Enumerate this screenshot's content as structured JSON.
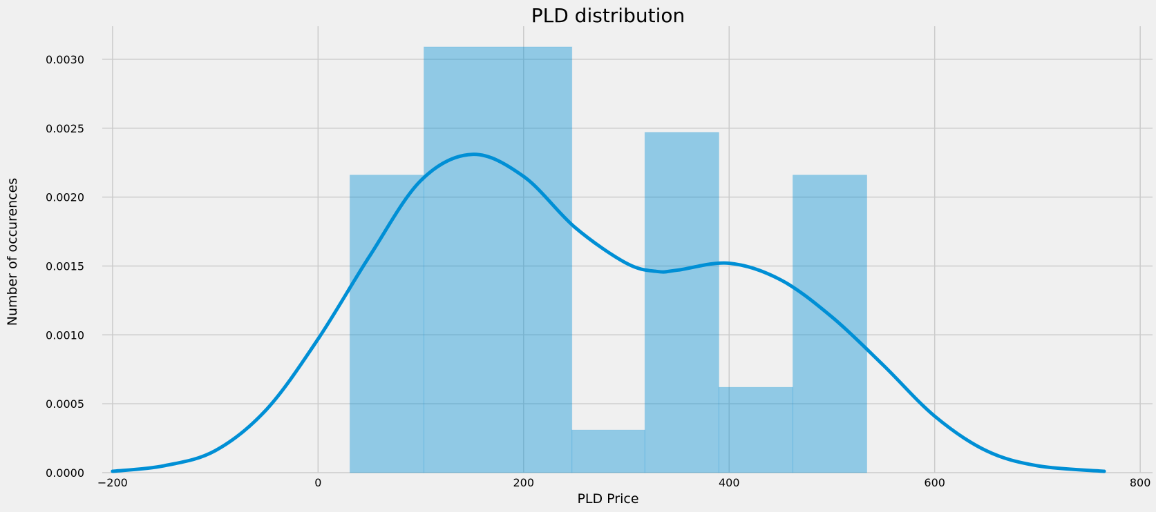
{
  "chart_data": {
    "type": "bar",
    "subtype": "histogram-with-kde",
    "title": "PLD distribution",
    "xlabel": "PLD Price",
    "ylabel": "Number of occurences",
    "xlim": [
      -210,
      812
    ],
    "ylim": [
      0,
      0.00324
    ],
    "x_ticks": [
      -200,
      0,
      200,
      400,
      600,
      800
    ],
    "x_tick_labels": [
      "−200",
      "0",
      "200",
      "400",
      "600",
      "800"
    ],
    "y_ticks": [
      0,
      0.0005,
      0.001,
      0.0015,
      0.002,
      0.0025,
      0.003
    ],
    "y_tick_labels": [
      "0.0000",
      "0.0005",
      "0.0010",
      "0.0015",
      "0.0020",
      "0.0025",
      "0.0030"
    ],
    "grid": true,
    "bins": [
      {
        "x0": 31,
        "x1": 103,
        "value": 0.00216
      },
      {
        "x0": 103,
        "x1": 247,
        "value": 0.00309
      },
      {
        "x0": 247,
        "x1": 318,
        "value": 0.00031
      },
      {
        "x0": 318,
        "x1": 390,
        "value": 0.00247
      },
      {
        "x0": 390,
        "x1": 462,
        "value": 0.00062
      },
      {
        "x0": 462,
        "x1": 534,
        "value": 0.00216
      }
    ],
    "kde": {
      "x": [
        -200,
        -150,
        -100,
        -50,
        0,
        50,
        100,
        150,
        200,
        250,
        300,
        330,
        350,
        400,
        450,
        500,
        550,
        600,
        650,
        700,
        765
      ],
      "y": [
        1e-05,
        5e-05,
        0.00016,
        0.00046,
        0.00097,
        0.00157,
        0.00212,
        0.00231,
        0.00215,
        0.00178,
        0.00152,
        0.00146,
        0.00147,
        0.00152,
        0.0014,
        0.00113,
        0.00078,
        0.00041,
        0.00016,
        5e-05,
        1e-05
      ]
    },
    "colors": {
      "bar_fill": "#008fd5",
      "bar_opacity": 0.4,
      "kde_line": "#008fd5",
      "background": "#f0f0f0",
      "grid": "#cbcbcb"
    }
  }
}
